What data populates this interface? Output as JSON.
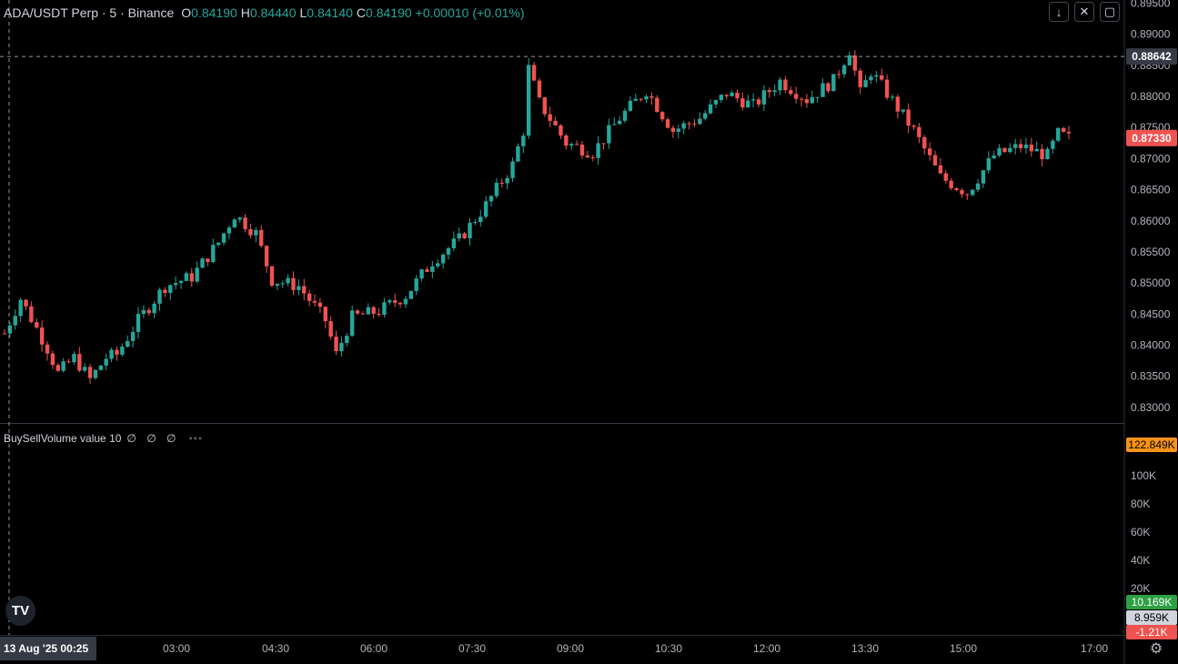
{
  "header": {
    "symbol": "ADA/USDT Perp · 5 · Binance",
    "o_label": "O",
    "o_value": "0.84190",
    "h_label": "H",
    "h_value": "0.84440",
    "l_label": "L",
    "l_value": "0.84140",
    "c_label": "C",
    "c_value": "0.84190",
    "change": "+0.00010 (+0.01%)"
  },
  "indicator": {
    "name": "BuySellVolume value 10",
    "values": "∅ ∅ ∅",
    "menu": "•••"
  },
  "toolbar": {
    "down_icon": "arrow-down-icon",
    "collapse_icon": "collapse-icon",
    "fullscreen_icon": "fullscreen-icon"
  },
  "logo_text": "TV",
  "colors": {
    "up": "#26a69a",
    "down": "#ef5350",
    "background": "#000000",
    "grid_line": "#2a2e39"
  },
  "chart_data": {
    "type": "candlestick",
    "price_axis": {
      "range": [
        0.8275,
        0.8955
      ],
      "ticks": [
        "0.89500",
        "0.89000",
        "0.88500",
        "0.88000",
        "0.87500",
        "0.87000",
        "0.86500",
        "0.86000",
        "0.85500",
        "0.85000",
        "0.84500",
        "0.84000",
        "0.83500",
        "0.83000"
      ],
      "tick_values": [
        0.895,
        0.89,
        0.885,
        0.88,
        0.875,
        0.87,
        0.865,
        0.86,
        0.855,
        0.85,
        0.845,
        0.84,
        0.835,
        0.83
      ],
      "crosshair_label": "0.88642",
      "crosshair_value": 0.88642,
      "last_price_label": "0.87330",
      "last_price_value": 0.8733
    },
    "volume_axis": {
      "ticks": [
        "100K",
        "80K",
        "60K",
        "40K",
        "20K"
      ],
      "tick_values": [
        100000,
        80000,
        60000,
        40000,
        20000
      ],
      "labels": [
        {
          "text": "122.849K",
          "color": "#f7931a",
          "text_color": "#000000"
        },
        {
          "text": "10.169K",
          "color": "#2ea043",
          "text_color": "#ffffff"
        },
        {
          "text": "8.959K",
          "color": "#d1d4dc",
          "text_color": "#000000"
        },
        {
          "text": "-1.21K",
          "color": "#ef5350",
          "text_color": "#ffffff"
        }
      ]
    },
    "time_axis": {
      "labels": [
        "03:00",
        "04:30",
        "06:00",
        "07:30",
        "09:00",
        "10:30",
        "12:00",
        "13:30",
        "15:00",
        "17:00"
      ],
      "crosshair_label": "13 Aug '25   00:25"
    },
    "close_path": [
      [
        0,
        0.8419
      ],
      [
        3,
        0.8475
      ],
      [
        8,
        0.8395
      ],
      [
        10,
        0.8355
      ],
      [
        13,
        0.838
      ],
      [
        16,
        0.8345
      ],
      [
        19,
        0.838
      ],
      [
        21,
        0.8385
      ],
      [
        25,
        0.844
      ],
      [
        30,
        0.8495
      ],
      [
        35,
        0.851
      ],
      [
        40,
        0.8565
      ],
      [
        43,
        0.861
      ],
      [
        47,
        0.858
      ],
      [
        50,
        0.8505
      ],
      [
        55,
        0.8495
      ],
      [
        60,
        0.844
      ],
      [
        62,
        0.8385
      ],
      [
        65,
        0.8445
      ],
      [
        70,
        0.8455
      ],
      [
        75,
        0.848
      ],
      [
        80,
        0.8535
      ],
      [
        85,
        0.857
      ],
      [
        90,
        0.8625
      ],
      [
        95,
        0.869
      ],
      [
        97,
        0.8745
      ],
      [
        98,
        0.8845
      ],
      [
        100,
        0.879
      ],
      [
        105,
        0.8725
      ],
      [
        110,
        0.871
      ],
      [
        115,
        0.8765
      ],
      [
        120,
        0.881
      ],
      [
        125,
        0.8745
      ],
      [
        130,
        0.8765
      ],
      [
        135,
        0.8805
      ],
      [
        140,
        0.8785
      ],
      [
        145,
        0.8825
      ],
      [
        150,
        0.8795
      ],
      [
        155,
        0.8825
      ],
      [
        158,
        0.8875
      ],
      [
        160,
        0.8805
      ],
      [
        162,
        0.884
      ],
      [
        165,
        0.8805
      ],
      [
        170,
        0.8745
      ],
      [
        175,
        0.867
      ],
      [
        180,
        0.8645
      ],
      [
        185,
        0.8705
      ],
      [
        190,
        0.872
      ],
      [
        195,
        0.8705
      ],
      [
        197,
        0.874
      ],
      [
        199,
        0.8733
      ]
    ]
  }
}
